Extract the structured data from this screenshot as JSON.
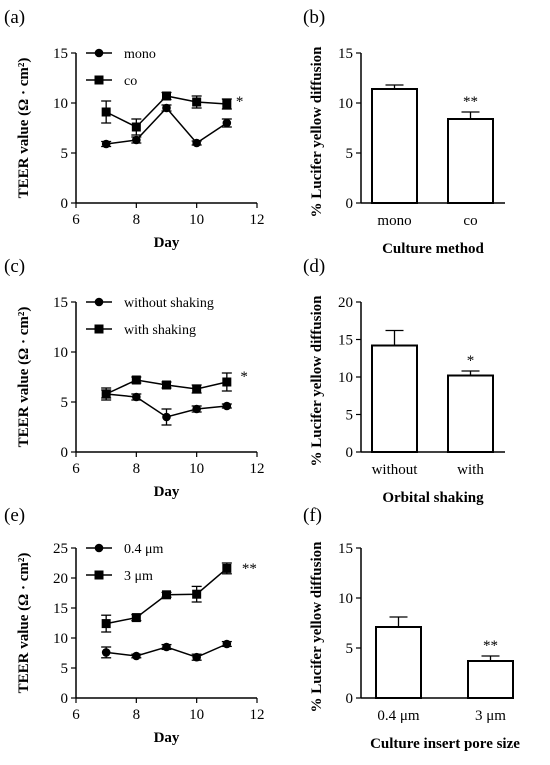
{
  "chart_data": [
    {
      "id": "a",
      "panel_label": "(a)",
      "type": "line",
      "xlabel": "Day",
      "ylabel": "TEER value (Ω · cm²)",
      "xlim": [
        6,
        12
      ],
      "ylim": [
        0,
        15
      ],
      "xticks": [
        6,
        8,
        10,
        12
      ],
      "yticks": [
        0,
        5,
        10,
        15
      ],
      "x": [
        7,
        8,
        9,
        10,
        11
      ],
      "series": [
        {
          "name": "mono",
          "marker": "circle",
          "values": [
            5.9,
            6.3,
            9.5,
            6.0,
            8.0
          ],
          "errors": [
            0.25,
            0.3,
            0.3,
            0.2,
            0.4
          ]
        },
        {
          "name": "co",
          "marker": "square",
          "values": [
            9.1,
            7.6,
            10.7,
            10.1,
            9.9
          ],
          "errors": [
            1.1,
            0.8,
            0.35,
            0.6,
            0.5
          ]
        }
      ],
      "annotation": "*",
      "annotation_at": [
        11.3,
        10.3
      ]
    },
    {
      "id": "b",
      "panel_label": "(b)",
      "type": "bar",
      "xlabel": "Culture method",
      "ylabel": "% Lucifer yellow diffusion",
      "ylim": [
        0,
        15
      ],
      "yticks": [
        0,
        5,
        10,
        15
      ],
      "categories": [
        "mono",
        "co"
      ],
      "values": [
        11.4,
        8.4
      ],
      "errors": [
        0.4,
        0.7
      ],
      "annotations": [
        "",
        "**"
      ]
    },
    {
      "id": "c",
      "panel_label": "(c)",
      "type": "line",
      "xlabel": "Day",
      "ylabel": "TEER value (Ω · cm²)",
      "xlim": [
        6,
        12
      ],
      "ylim": [
        0,
        15
      ],
      "xticks": [
        6,
        8,
        10,
        12
      ],
      "yticks": [
        0,
        5,
        10,
        15
      ],
      "x": [
        7,
        8,
        9,
        10,
        11
      ],
      "series": [
        {
          "name": "without shaking",
          "marker": "circle",
          "values": [
            5.8,
            5.5,
            3.5,
            4.3,
            4.6
          ],
          "errors": [
            0.4,
            0.3,
            0.8,
            0.3,
            0.2
          ]
        },
        {
          "name": "with shaking",
          "marker": "square",
          "values": [
            5.8,
            7.2,
            6.7,
            6.3,
            7.0
          ],
          "errors": [
            0.6,
            0.3,
            0.3,
            0.4,
            0.9
          ]
        }
      ],
      "annotation": "*",
      "annotation_at": [
        11.45,
        7.7
      ]
    },
    {
      "id": "d",
      "panel_label": "(d)",
      "type": "bar",
      "xlabel": "Orbital shaking",
      "ylabel": "% Lucifer yellow diffusion",
      "ylim": [
        0,
        20
      ],
      "yticks": [
        0,
        5,
        10,
        15,
        20
      ],
      "categories": [
        "without",
        "with"
      ],
      "values": [
        14.2,
        10.2
      ],
      "errors": [
        2.0,
        0.6
      ],
      "annotations": [
        "",
        "*"
      ]
    },
    {
      "id": "e",
      "panel_label": "(e)",
      "type": "line",
      "xlabel": "Day",
      "ylabel": "TEER value (Ω · cm²)",
      "xlim": [
        6,
        12
      ],
      "ylim": [
        0,
        25
      ],
      "xticks": [
        6,
        8,
        10,
        12
      ],
      "yticks": [
        0,
        5,
        10,
        15,
        20,
        25
      ],
      "x": [
        7,
        8,
        9,
        10,
        11
      ],
      "series": [
        {
          "name": "0.4 μm",
          "marker": "circle",
          "values": [
            7.6,
            7.0,
            8.5,
            6.8,
            9.0
          ],
          "errors": [
            0.9,
            0.3,
            0.4,
            0.5,
            0.4
          ]
        },
        {
          "name": "3 μm",
          "marker": "square",
          "values": [
            12.4,
            13.4,
            17.2,
            17.3,
            21.6
          ],
          "errors": [
            1.4,
            0.5,
            0.4,
            1.3,
            0.9
          ]
        }
      ],
      "annotation": "**",
      "annotation_at": [
        11.5,
        21.8
      ]
    },
    {
      "id": "f",
      "panel_label": "(f)",
      "type": "bar",
      "xlabel": "Culture insert pore size",
      "ylabel": "% Lucifer yellow diffusion",
      "ylim": [
        0,
        15
      ],
      "yticks": [
        0,
        5,
        10,
        15
      ],
      "categories": [
        "0.4 μm",
        "3 μm"
      ],
      "values": [
        7.1,
        3.7
      ],
      "errors": [
        1.0,
        0.5
      ],
      "annotations": [
        "",
        "**"
      ]
    }
  ]
}
